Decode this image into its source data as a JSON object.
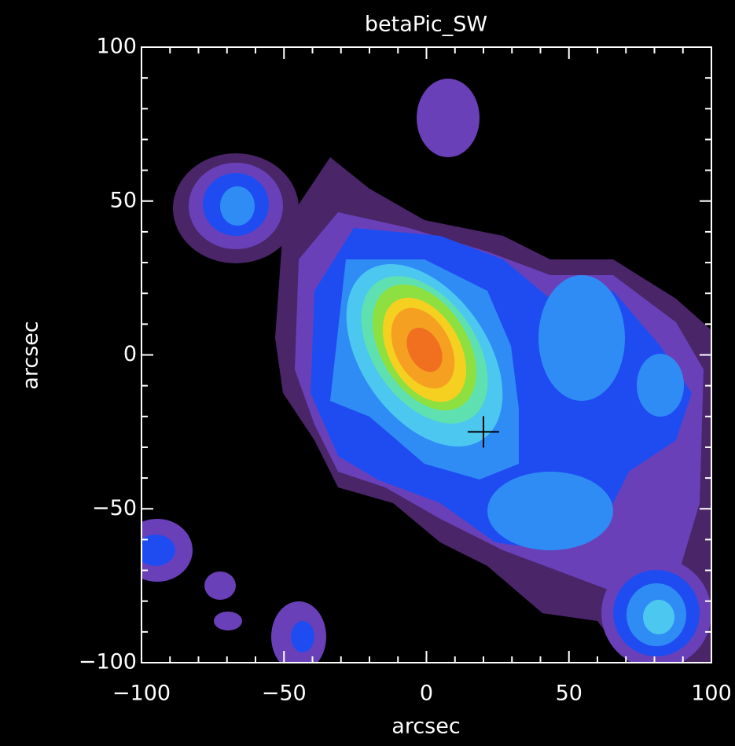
{
  "chart_data": {
    "type": "contour",
    "title": "betaPic_SW",
    "x_label": "arcsec",
    "y_label": "arcsec",
    "xlim": [
      -100,
      100
    ],
    "ylim": [
      -100,
      100
    ],
    "xticks": [
      {
        "value": -100,
        "label": "−100"
      },
      {
        "value": -50,
        "label": "−50"
      },
      0,
      50,
      100
    ],
    "yticks": [
      {
        "value": -100,
        "label": "−100"
      },
      {
        "value": -50,
        "label": "−50"
      },
      0,
      50,
      100
    ],
    "marker": {
      "x": 20,
      "y": -25,
      "color": "#000000"
    }
  }
}
